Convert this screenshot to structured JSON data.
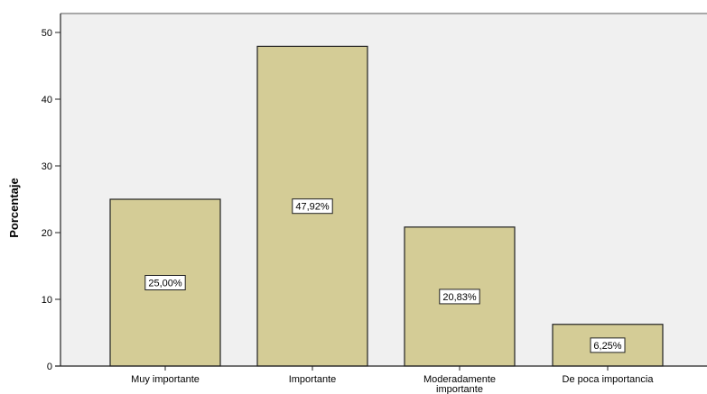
{
  "chart_data": {
    "type": "bar",
    "title": "",
    "xlabel": "",
    "ylabel": "Porcentaje",
    "ylim": [
      0,
      50
    ],
    "yticks": [
      0,
      10,
      20,
      30,
      40,
      50
    ],
    "grid": false,
    "categories": [
      [
        "Muy importante"
      ],
      [
        "Importante"
      ],
      [
        "Moderadamente",
        "importante"
      ],
      [
        "De poca importancia"
      ]
    ],
    "values": [
      25.0,
      47.92,
      20.83,
      6.25
    ],
    "data_labels": [
      "25,00%",
      "47,92%",
      "20,83%",
      "6,25%"
    ],
    "colors": {
      "bar_fill": "#d4cc96",
      "bar_stroke": "#222222",
      "plot_bg": "#f0f0f0",
      "plot_border": "#a8a8a8",
      "axis": "#222222"
    }
  }
}
